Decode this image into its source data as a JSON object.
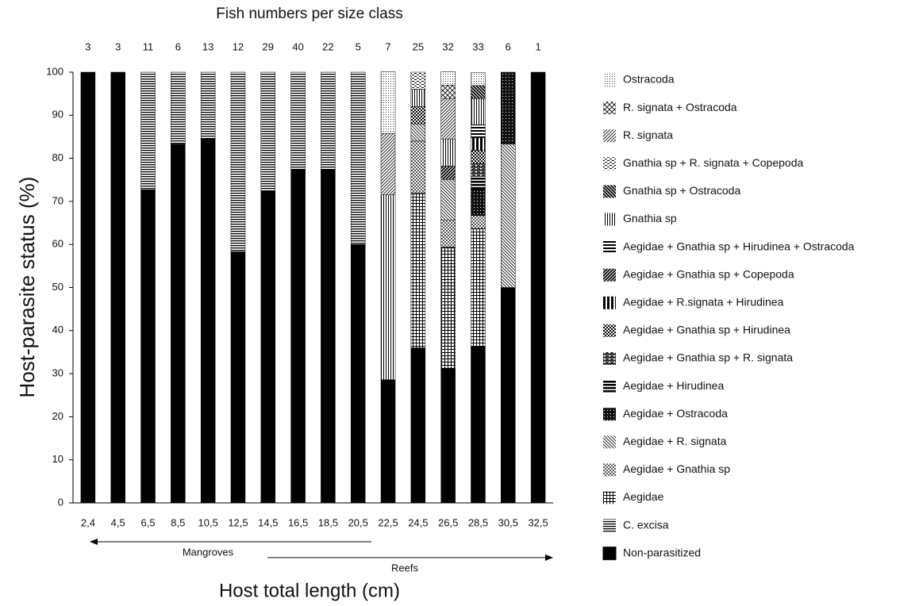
{
  "chart_data": {
    "type": "stacked_bar",
    "title": "Fish numbers per size class",
    "y_label": "Host-parasite status (%)",
    "x_label": "Host total length (cm)",
    "annotations": [
      "Mangroves",
      "Reefs"
    ],
    "counts": [
      3,
      3,
      11,
      6,
      13,
      12,
      29,
      40,
      22,
      5,
      7,
      25,
      32,
      33,
      6,
      1
    ],
    "categories": [
      "2,4",
      "4,5",
      "6,5",
      "8,5",
      "10,5",
      "12,5",
      "14,5",
      "16,5",
      "18,5",
      "20,5",
      "22,5",
      "24,5",
      "26,5",
      "28,5",
      "30,5",
      "32,5"
    ],
    "ylim": [
      0,
      100
    ],
    "yticks": [
      0,
      10,
      20,
      30,
      40,
      50,
      60,
      70,
      80,
      90,
      100
    ],
    "series": [
      {
        "name": "Non-parasitized",
        "values": [
          100,
          100,
          72.7,
          83.3,
          84.6,
          58.3,
          72.4,
          77.5,
          77.3,
          60,
          28.6,
          36,
          31.3,
          36.4,
          50,
          100
        ]
      },
      {
        "name": "C. excisa",
        "values": [
          0,
          0,
          27.3,
          16.7,
          15.4,
          41.7,
          27.6,
          22.5,
          22.7,
          40,
          0,
          0,
          0,
          0,
          0,
          0
        ]
      },
      {
        "name": "Aegidae",
        "values": [
          0,
          0,
          0,
          0,
          0,
          0,
          0,
          0,
          0,
          0,
          0,
          36,
          28.1,
          27.3,
          0,
          0
        ]
      },
      {
        "name": "Aegidae + Gnathia sp",
        "values": [
          0,
          0,
          0,
          0,
          0,
          0,
          0,
          0,
          0,
          0,
          0,
          12,
          6.3,
          3,
          0,
          0
        ]
      },
      {
        "name": "Aegidae + R. signata",
        "values": [
          0,
          0,
          0,
          0,
          0,
          0,
          0,
          0,
          0,
          0,
          0,
          4,
          9.4,
          0,
          33.3,
          0
        ]
      },
      {
        "name": "Aegidae + Ostracoda",
        "values": [
          0,
          0,
          0,
          0,
          0,
          0,
          0,
          0,
          0,
          0,
          0,
          0,
          0,
          6.1,
          16.7,
          0
        ]
      },
      {
        "name": "Aegidae + Hirudinea",
        "values": [
          0,
          0,
          0,
          0,
          0,
          0,
          0,
          0,
          0,
          0,
          0,
          0,
          0,
          3,
          0,
          0
        ]
      },
      {
        "name": "Aegidae + Gnathia sp + R. signata",
        "values": [
          0,
          0,
          0,
          0,
          0,
          0,
          0,
          0,
          0,
          0,
          0,
          0,
          0,
          3,
          0,
          0
        ]
      },
      {
        "name": "Aegidae + Gnathia sp + Hirudinea",
        "values": [
          0,
          0,
          0,
          0,
          0,
          0,
          0,
          0,
          0,
          0,
          0,
          4,
          0,
          3,
          0,
          0
        ]
      },
      {
        "name": "Aegidae + R.signata + Hirudinea",
        "values": [
          0,
          0,
          0,
          0,
          0,
          0,
          0,
          0,
          0,
          0,
          0,
          0,
          0,
          3,
          0,
          0
        ]
      },
      {
        "name": "Aegidae + Gnathia sp + Copepoda",
        "values": [
          0,
          0,
          0,
          0,
          0,
          0,
          0,
          0,
          0,
          0,
          0,
          0,
          3.1,
          0,
          0,
          0
        ]
      },
      {
        "name": "Aegidae + Gnathia sp + Hirudinea + Ostracoda",
        "values": [
          0,
          0,
          0,
          0,
          0,
          0,
          0,
          0,
          0,
          0,
          0,
          0,
          0,
          3,
          0,
          0
        ]
      },
      {
        "name": "Gnathia sp",
        "values": [
          0,
          0,
          0,
          0,
          0,
          0,
          0,
          0,
          0,
          0,
          42.9,
          4,
          6.3,
          6.1,
          0,
          0
        ]
      },
      {
        "name": "Gnathia sp + Ostracoda",
        "values": [
          0,
          0,
          0,
          0,
          0,
          0,
          0,
          0,
          0,
          0,
          0,
          0,
          0,
          3,
          0,
          0
        ]
      },
      {
        "name": "Gnathia sp + R. signata + Copepoda",
        "values": [
          0,
          0,
          0,
          0,
          0,
          0,
          0,
          0,
          0,
          0,
          0,
          4,
          0,
          0,
          0,
          0
        ]
      },
      {
        "name": "R. signata",
        "values": [
          0,
          0,
          0,
          0,
          0,
          0,
          0,
          0,
          0,
          0,
          14.3,
          0,
          9.4,
          0,
          0,
          0
        ]
      },
      {
        "name": "R. signata + Ostracoda",
        "values": [
          0,
          0,
          0,
          0,
          0,
          0,
          0,
          0,
          0,
          0,
          0,
          0,
          3.1,
          0,
          0,
          0
        ]
      },
      {
        "name": "Ostracoda",
        "values": [
          0,
          0,
          0,
          0,
          0,
          0,
          0,
          0,
          0,
          0,
          14.3,
          0,
          3.1,
          3,
          0,
          0
        ]
      }
    ]
  }
}
